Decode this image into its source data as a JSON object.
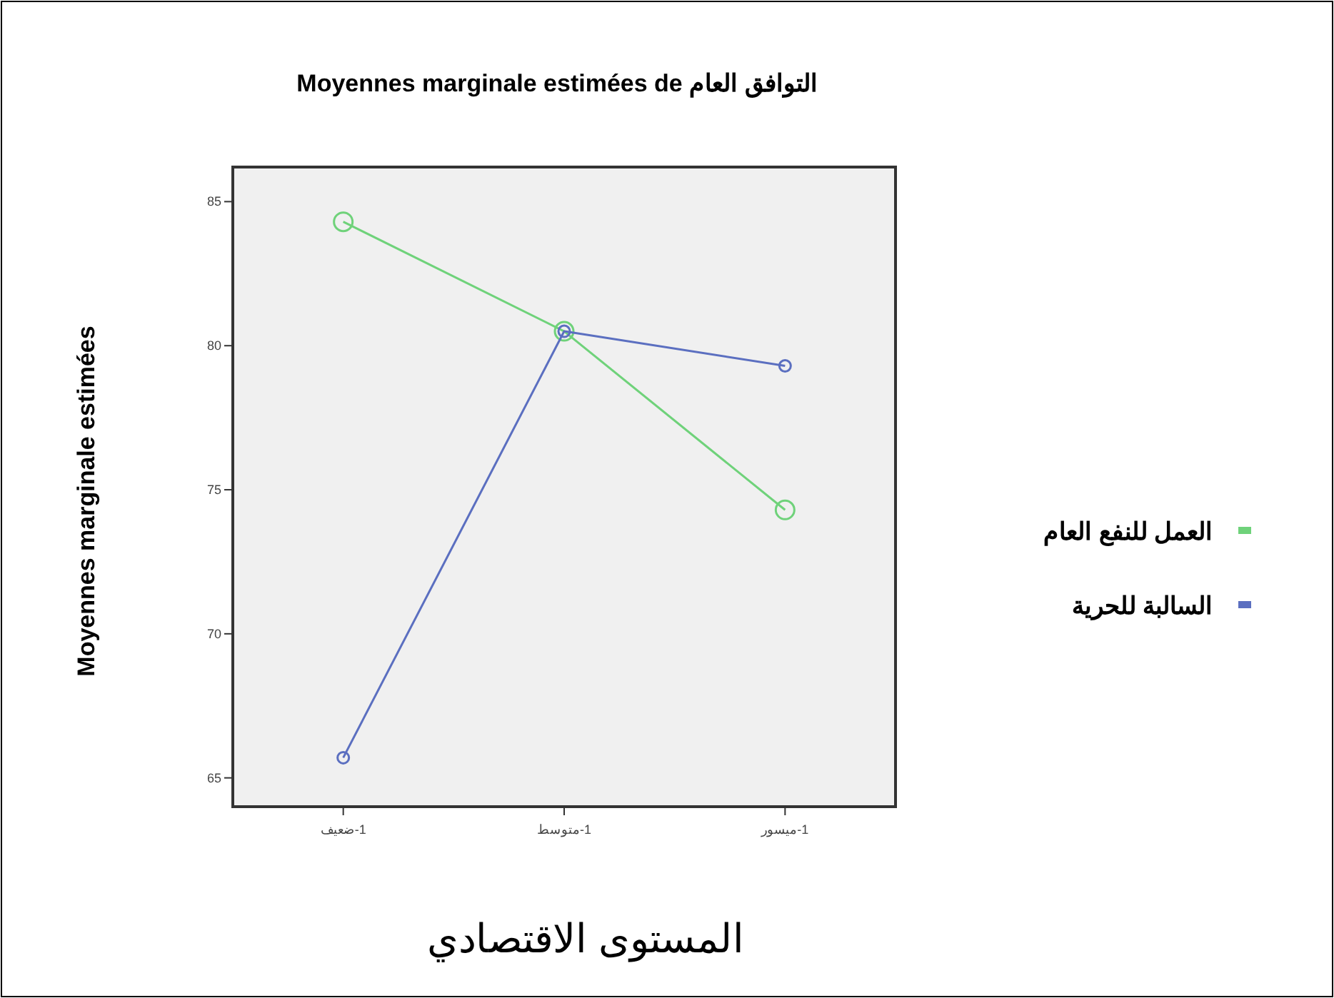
{
  "chart_data": {
    "type": "line",
    "title": "Moyennes marginale estimées de  التوافق العام",
    "xlabel": "المستوى الاقتصادي",
    "ylabel": "Moyennes marginale estimées",
    "categories": [
      "1-ضعيف",
      "1-متوسط",
      "1-ميسور"
    ],
    "series": [
      {
        "name": "العمل للنفع العام",
        "color": "#6fd27a",
        "values": [
          84.3,
          80.5,
          74.3
        ]
      },
      {
        "name": "السالبة للحرية",
        "color": "#5b6fc0",
        "values": [
          65.7,
          80.5,
          79.3
        ]
      }
    ],
    "ylim": [
      64,
      86.2
    ],
    "yticks": [
      65,
      70,
      75,
      80,
      85
    ],
    "marker": "circle",
    "line_style": "solid",
    "legend": "right",
    "grid": false
  }
}
